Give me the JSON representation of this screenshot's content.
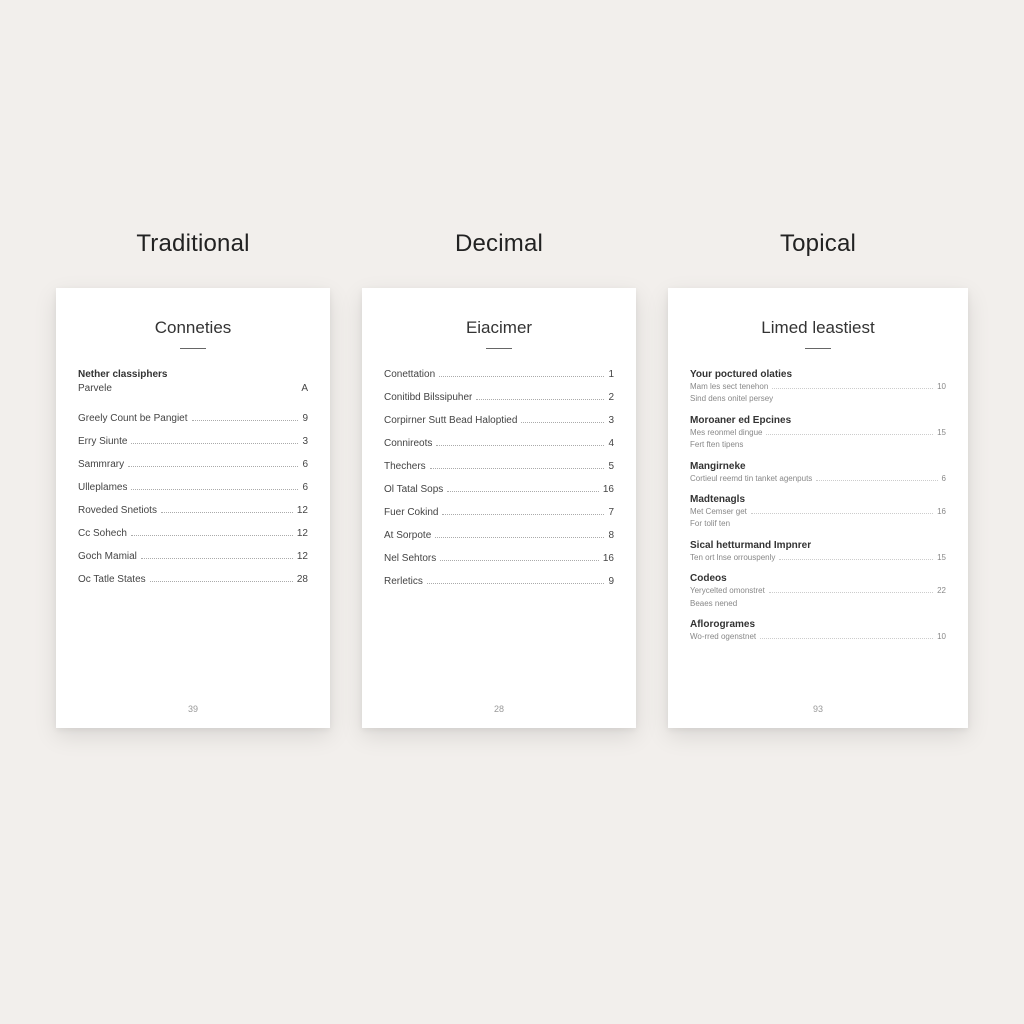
{
  "background_color": "#f2efec",
  "card_background": "#ffffff",
  "columns": [
    {
      "label": "Traditional",
      "card_title": "Conneties",
      "footer_page": "39",
      "entries": [
        {
          "label": "Nether classiphers",
          "page": "",
          "bold": true,
          "leader": false
        },
        {
          "label": "Parvele",
          "page": "A",
          "bold": false,
          "leader": false
        },
        {
          "label": "Greely Count be Pangiet",
          "page": "9",
          "bold": false,
          "leader": true
        },
        {
          "label": "Erry Siunte",
          "page": "3",
          "bold": false,
          "leader": true
        },
        {
          "label": "Sammrary",
          "page": "6",
          "bold": false,
          "leader": true
        },
        {
          "label": "Ulleplames",
          "page": "6",
          "bold": false,
          "leader": true
        },
        {
          "label": "Roveded Snetiots",
          "page": "12",
          "bold": false,
          "leader": true
        },
        {
          "label": "Cc Sohech",
          "page": "12",
          "bold": false,
          "leader": true
        },
        {
          "label": "Goch Mamial",
          "page": "12",
          "bold": false,
          "leader": true
        },
        {
          "label": "Oc Tatle States",
          "page": "28",
          "bold": false,
          "leader": true
        }
      ]
    },
    {
      "label": "Decimal",
      "card_title": "Eiacimer",
      "footer_page": "28",
      "entries": [
        {
          "label": "Conettation",
          "page": "1",
          "bold": false,
          "leader": true
        },
        {
          "label": "Conitibd Bilssipuher",
          "page": "2",
          "bold": false,
          "leader": true
        },
        {
          "label": "Corpirner Sutt Bead Haloptied",
          "page": "3",
          "bold": false,
          "leader": true
        },
        {
          "label": "Connireots",
          "page": "4",
          "bold": false,
          "leader": true
        },
        {
          "label": "Thechers",
          "page": "5",
          "bold": false,
          "leader": true
        },
        {
          "label": "Ol Tatal Sops",
          "page": "16",
          "bold": false,
          "leader": true
        },
        {
          "label": "Fuer Cokind",
          "page": "7",
          "bold": false,
          "leader": true
        },
        {
          "label": "At Sorpote",
          "page": "8",
          "bold": false,
          "leader": true
        },
        {
          "label": "Nel Sehtors",
          "page": "16",
          "bold": false,
          "leader": true
        },
        {
          "label": "Rerletics",
          "page": "9",
          "bold": false,
          "leader": true
        }
      ]
    }
  ],
  "topical": {
    "label": "Topical",
    "card_title": "Limed leastiest",
    "footer_page": "93",
    "groups": [
      {
        "head": "Your poctured olaties",
        "subs": [
          {
            "label": "Mam les sect tenehon",
            "page": "10",
            "leader": true
          },
          {
            "label": "Sind dens onitel persey",
            "page": "",
            "leader": false
          }
        ]
      },
      {
        "head": "Moroaner ed Epcines",
        "subs": [
          {
            "label": "Mes reonmel dingue",
            "page": "15",
            "leader": true
          },
          {
            "label": "Fert ften tipens",
            "page": "",
            "leader": false
          }
        ]
      },
      {
        "head": "Mangirneke",
        "subs": [
          {
            "label": "Cortieul reemd tin tanket agenputs",
            "page": "6",
            "leader": true
          }
        ]
      },
      {
        "head": "Madtenagls",
        "subs": [
          {
            "label": "Met Cemser get",
            "page": "16",
            "leader": true
          },
          {
            "label": "For tolif ten",
            "page": "",
            "leader": false
          }
        ]
      },
      {
        "head": "Sical hetturmand Impnrer",
        "subs": [
          {
            "label": "Ten ort lnse orrouspenly",
            "page": "15",
            "leader": true
          }
        ]
      },
      {
        "head": "Codeos",
        "subs": [
          {
            "label": "Yerycelted omonstret",
            "page": "22",
            "leader": true
          },
          {
            "label": "Beaes nened",
            "page": "",
            "leader": false
          }
        ]
      },
      {
        "head": "Aflorogrames",
        "subs": [
          {
            "label": "Wo-rred ogenstnet",
            "page": "10",
            "leader": true
          }
        ]
      }
    ]
  }
}
